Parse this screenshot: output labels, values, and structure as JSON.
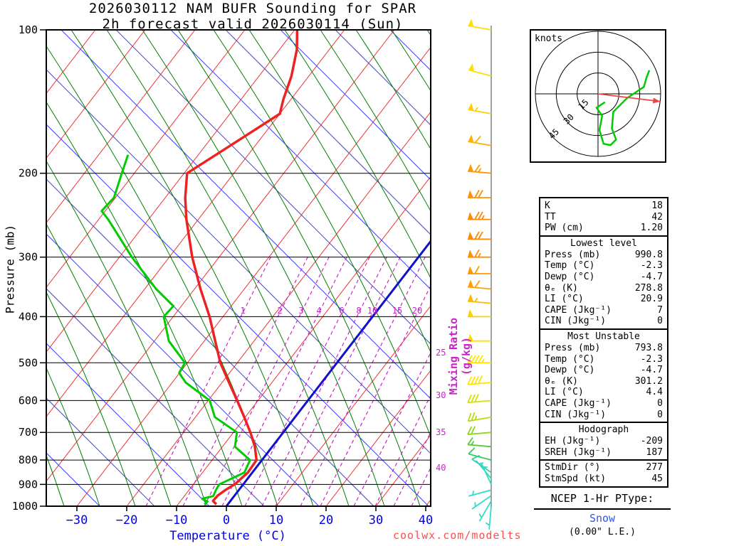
{
  "title": {
    "line1": "2026030112 NAM BUFR Sounding for SPAR",
    "line2": "2h forecast valid 2026030114 (Sun)"
  },
  "axes": {
    "pressure_label": "Pressure (mb)",
    "temp_label": "Temperature (°C)",
    "mixing_label": "Mixing Ratio (g/kg)"
  },
  "plot": {
    "mixing_row_values": [
      1,
      2,
      3,
      4,
      6,
      8,
      10,
      15,
      20
    ],
    "mixing_right_values": [
      25,
      30,
      35,
      40
    ]
  },
  "hodograph_panel": {
    "unit_label": "knots",
    "ring_labels_kt": [
      15,
      30,
      45
    ]
  },
  "stats_panel": {
    "sections": [
      {
        "rows": [
          [
            "K",
            "18"
          ],
          [
            "TT",
            "42"
          ],
          [
            "PW (cm)",
            "1.20"
          ]
        ]
      },
      {
        "header": "Lowest level",
        "rows": [
          [
            "Press (mb)",
            "990.8"
          ],
          [
            "Temp (°C)",
            "-2.3"
          ],
          [
            "Dewp (°C)",
            "-4.7"
          ],
          [
            "θₑ (K)",
            "278.8"
          ],
          [
            "LI (°C)",
            "20.9"
          ],
          [
            "CAPE (Jkg⁻¹)",
            "7"
          ],
          [
            "CIN (Jkg⁻¹)",
            "0"
          ]
        ]
      },
      {
        "header": "Most Unstable",
        "rows": [
          [
            "Press (mb)",
            "793.8"
          ],
          [
            "Temp (°C)",
            "-2.3"
          ],
          [
            "Dewp (°C)",
            "-4.7"
          ],
          [
            "θₑ (K)",
            "301.2"
          ],
          [
            "LI (°C)",
            "4.4"
          ],
          [
            "CAPE (Jkg⁻¹)",
            "0"
          ],
          [
            "CIN (Jkg⁻¹)",
            "0"
          ]
        ]
      },
      {
        "header": "Hodograph",
        "rows": [
          [
            "EH (Jkg⁻¹)",
            "-209"
          ],
          [
            "SREH (Jkg⁻¹)",
            "187"
          ]
        ],
        "rows2": [
          [
            "StmDir (°)",
            "277"
          ],
          [
            "StmSpd (kt)",
            "45"
          ]
        ]
      }
    ]
  },
  "ptype_panel": {
    "header": "NCEP 1-Hr PType:",
    "value": "Snow",
    "liquid_equiv": "(0.00\" L.E.)"
  },
  "footer": {
    "watermark": "coolwx.com/modelts"
  },
  "colors": {
    "isotherm": "#ee3333",
    "dry_adiabat": "#4444ee",
    "moist_adiabat": "#008000",
    "mixing_ratio": "#cc22cc",
    "zero_isotherm": "#1111cc",
    "temperature_trace": "#ee2222",
    "dewpoint_trace": "#00cc00",
    "storm_arrow": "#ee4444",
    "axis_blue": "#0000ee",
    "snow_blue": "#3355dd",
    "watermark_red": "#ff4d4d"
  },
  "chart_data": {
    "type": "skewt-log-p-sounding",
    "title": "2026030112 NAM BUFR Sounding for SPAR, 2h forecast valid 2026030114 (Sun)",
    "station": "SPAR",
    "model": "NAM BUFR",
    "run": "2026030112",
    "valid": "2026030114 (Sun)",
    "forecast_hour": 2,
    "pressure_axis_mb": {
      "min": 100,
      "max": 1000,
      "scale": "log",
      "ticks": [
        100,
        200,
        300,
        400,
        500,
        600,
        700,
        800,
        900,
        1000
      ]
    },
    "temperature_axis_c": {
      "min": -40,
      "max": 45,
      "ticks": [
        -30,
        -20,
        -10,
        0,
        10,
        20,
        30,
        40
      ]
    },
    "mixing_ratio_lines_g_kg": [
      1,
      2,
      3,
      4,
      6,
      8,
      10,
      15,
      20,
      25,
      30,
      35,
      40
    ],
    "temperature_profile_p_t": [
      [
        991,
        -2.3
      ],
      [
        975,
        -3.5
      ],
      [
        950,
        -3.4
      ],
      [
        925,
        -2.7
      ],
      [
        900,
        -1.7
      ],
      [
        850,
        -0.9
      ],
      [
        800,
        -1.1
      ],
      [
        750,
        -3.5
      ],
      [
        700,
        -6.6
      ],
      [
        650,
        -10.2
      ],
      [
        600,
        -14.2
      ],
      [
        550,
        -18.6
      ],
      [
        500,
        -23.4
      ],
      [
        450,
        -27.8
      ],
      [
        400,
        -32.7
      ],
      [
        350,
        -38.8
      ],
      [
        300,
        -45.4
      ],
      [
        250,
        -52.4
      ],
      [
        225,
        -56.0
      ],
      [
        200,
        -59.4
      ],
      [
        175,
        -55.0
      ],
      [
        150,
        -50.0
      ],
      [
        140,
        -51.5
      ],
      [
        125,
        -53.5
      ],
      [
        110,
        -56.5
      ],
      [
        100,
        -59.5
      ]
    ],
    "dewpoint_profile_p_td": [
      [
        991,
        -4.7
      ],
      [
        978,
        -4.5
      ],
      [
        965,
        -6.0
      ],
      [
        952,
        -4.2
      ],
      [
        925,
        -4.6
      ],
      [
        900,
        -4.8
      ],
      [
        850,
        -1.6
      ],
      [
        800,
        -2.4
      ],
      [
        750,
        -7.5
      ],
      [
        700,
        -9.3
      ],
      [
        650,
        -16.1
      ],
      [
        600,
        -19.7
      ],
      [
        550,
        -27.3
      ],
      [
        525,
        -30.1
      ],
      [
        500,
        -30.5
      ],
      [
        450,
        -37.1
      ],
      [
        400,
        -41.9
      ],
      [
        380,
        -41.6
      ],
      [
        350,
        -47.7
      ],
      [
        300,
        -57.5
      ],
      [
        250,
        -68.1
      ],
      [
        240,
        -70.7
      ],
      [
        225,
        -70.3
      ],
      [
        200,
        -72.5
      ],
      [
        183,
        -74.1
      ]
    ],
    "wind_barbs": [
      {
        "p": 100,
        "spd_kt": 50,
        "dir_deg": 280,
        "color": "#ffdf00"
      },
      {
        "p": 125,
        "spd_kt": 50,
        "dir_deg": 285,
        "color": "#ffdf00"
      },
      {
        "p": 150,
        "spd_kt": 55,
        "dir_deg": 280,
        "color": "#ffd000"
      },
      {
        "p": 175,
        "spd_kt": 60,
        "dir_deg": 280,
        "color": "#ffb000"
      },
      {
        "p": 200,
        "spd_kt": 65,
        "dir_deg": 275,
        "color": "#ff9800"
      },
      {
        "p": 225,
        "spd_kt": 70,
        "dir_deg": 270,
        "color": "#ff9000"
      },
      {
        "p": 250,
        "spd_kt": 75,
        "dir_deg": 270,
        "color": "#ff8800"
      },
      {
        "p": 275,
        "spd_kt": 70,
        "dir_deg": 270,
        "color": "#ff8800"
      },
      {
        "p": 300,
        "spd_kt": 65,
        "dir_deg": 270,
        "color": "#ff9000"
      },
      {
        "p": 325,
        "spd_kt": 60,
        "dir_deg": 270,
        "color": "#ff9800"
      },
      {
        "p": 350,
        "spd_kt": 60,
        "dir_deg": 275,
        "color": "#ffa000"
      },
      {
        "p": 375,
        "spd_kt": 55,
        "dir_deg": 275,
        "color": "#ffb800"
      },
      {
        "p": 400,
        "spd_kt": 50,
        "dir_deg": 270,
        "color": "#ffd000"
      },
      {
        "p": 450,
        "spd_kt": 50,
        "dir_deg": 270,
        "color": "#ffdf00"
      },
      {
        "p": 500,
        "spd_kt": 45,
        "dir_deg": 270,
        "color": "#ffe400"
      },
      {
        "p": 550,
        "spd_kt": 40,
        "dir_deg": 265,
        "color": "#ffe400"
      },
      {
        "p": 600,
        "spd_kt": 30,
        "dir_deg": 265,
        "color": "#d8e000"
      },
      {
        "p": 650,
        "spd_kt": 25,
        "dir_deg": 260,
        "color": "#b8dc10"
      },
      {
        "p": 700,
        "spd_kt": 20,
        "dir_deg": 265,
        "color": "#8cd820"
      },
      {
        "p": 750,
        "spd_kt": 15,
        "dir_deg": 275,
        "color": "#55cc33"
      },
      {
        "p": 800,
        "spd_kt": 10,
        "dir_deg": 285,
        "color": "#33cc55"
      },
      {
        "p": 850,
        "spd_kt": 10,
        "dir_deg": 305,
        "color": "#2fd0a0"
      },
      {
        "p": 875,
        "spd_kt": 5,
        "dir_deg": 320,
        "color": "#30d8c0"
      },
      {
        "p": 900,
        "spd_kt": 5,
        "dir_deg": 335,
        "color": "#30ddc8"
      },
      {
        "p": 925,
        "spd_kt": 5,
        "dir_deg": 255,
        "color": "#30ddc8"
      },
      {
        "p": 950,
        "spd_kt": 5,
        "dir_deg": 235,
        "color": "#30ddc8"
      },
      {
        "p": 975,
        "spd_kt": 5,
        "dir_deg": 210,
        "color": "#30ddc8"
      },
      {
        "p": 1000,
        "spd_kt": 5,
        "dir_deg": 185,
        "color": "#30ddc8"
      }
    ],
    "hodograph": {
      "rings_kt": [
        15,
        30,
        45
      ],
      "trace_uv_kt": [
        [
          37,
          17
        ],
        [
          35,
          12
        ],
        [
          33,
          5
        ],
        [
          21,
          -3
        ],
        [
          11,
          -13
        ],
        [
          10,
          -25
        ],
        [
          13,
          -33
        ],
        [
          9,
          -37
        ],
        [
          4,
          -36
        ],
        [
          1,
          -26
        ],
        [
          3,
          -16
        ],
        [
          -1,
          -10
        ],
        [
          5,
          -6
        ]
      ],
      "storm_dir_deg": 277,
      "storm_spd_kt": 45
    },
    "indices": {
      "K": 18,
      "TT": 42,
      "PW_cm": 1.2,
      "lowest_level": {
        "press_mb": 990.8,
        "temp_c": -2.3,
        "dewp_c": -4.7,
        "theta_e_k": 278.8,
        "li_c": 20.9,
        "cape_jkg": 7,
        "cin_jkg": 0
      },
      "most_unstable": {
        "press_mb": 793.8,
        "temp_c": -2.3,
        "dewp_c": -4.7,
        "theta_e_k": 301.2,
        "li_c": 4.4,
        "cape_jkg": 0,
        "cin_jkg": 0
      },
      "hodograph": {
        "eh_jkg": -209,
        "sreh_jkg": 187,
        "storm_dir_deg": 277,
        "storm_spd_kt": 45
      },
      "ncep_1hr_ptype": "Snow",
      "liquid_equiv_in": 0.0
    }
  }
}
